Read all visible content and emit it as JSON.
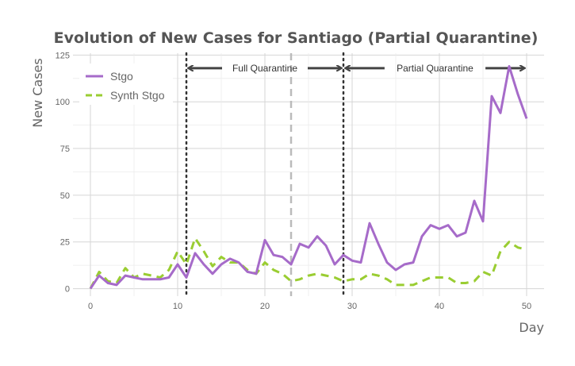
{
  "chart_data": {
    "type": "line",
    "title": "Evolution of New Cases for Santiago (Partial Quarantine)",
    "xlabel": "Day",
    "ylabel": "New Cases",
    "xlim": [
      -2,
      52
    ],
    "ylim": [
      -4,
      126
    ],
    "x_ticks": [
      0,
      10,
      20,
      30,
      40,
      50
    ],
    "y_ticks": [
      0,
      25,
      50,
      75,
      100,
      125
    ],
    "grid": true,
    "legend_position": "top-left",
    "series": [
      {
        "name": "Stgo",
        "color": "#a66bc9",
        "style": "solid",
        "x": [
          0,
          1,
          2,
          3,
          4,
          5,
          6,
          7,
          8,
          9,
          10,
          11,
          12,
          13,
          14,
          15,
          16,
          17,
          18,
          19,
          20,
          21,
          22,
          23,
          24,
          25,
          26,
          27,
          28,
          29,
          30,
          31,
          32,
          33,
          34,
          35,
          36,
          37,
          38,
          39,
          40,
          41,
          42,
          43,
          44,
          45,
          46,
          47,
          48,
          49,
          50
        ],
        "values": [
          0,
          7,
          3,
          2,
          7,
          6,
          5,
          5,
          5,
          6,
          13,
          6,
          19,
          13,
          8,
          13,
          16,
          14,
          9,
          8,
          26,
          18,
          17,
          13,
          24,
          22,
          28,
          23,
          13,
          18,
          15,
          14,
          35,
          24,
          14,
          10,
          13,
          14,
          28,
          34,
          32,
          34,
          28,
          30,
          47,
          36,
          103,
          94,
          119,
          104,
          91
        ]
      },
      {
        "name": "Synth Stgo",
        "color": "#9acd32",
        "style": "dashed",
        "x": [
          0,
          1,
          2,
          3,
          4,
          5,
          6,
          7,
          8,
          9,
          10,
          11,
          12,
          13,
          14,
          15,
          16,
          17,
          18,
          19,
          20,
          21,
          22,
          23,
          24,
          25,
          26,
          27,
          28,
          29,
          30,
          31,
          32,
          33,
          34,
          35,
          36,
          37,
          38,
          39,
          40,
          41,
          42,
          43,
          44,
          45,
          46,
          47,
          48,
          49,
          50
        ],
        "values": [
          0,
          9,
          4,
          3,
          11,
          6,
          8,
          7,
          6,
          10,
          20,
          13,
          27,
          20,
          12,
          17,
          14,
          14,
          10,
          8,
          14,
          10,
          8,
          4,
          5,
          7,
          8,
          7,
          6,
          4,
          5,
          5,
          8,
          7,
          5,
          2,
          2,
          2,
          4,
          6,
          6,
          6,
          3,
          3,
          4,
          9,
          7,
          20,
          25,
          22,
          21
        ]
      }
    ],
    "reference_lines": [
      {
        "x": 11,
        "style": "dotted",
        "color": "#333333"
      },
      {
        "x": 23,
        "style": "dashed",
        "color": "#bbbbbb"
      },
      {
        "x": 29,
        "style": "dotted",
        "color": "#333333"
      }
    ],
    "annotations": [
      {
        "label": "Full Quarantine",
        "x_start": 11,
        "x_end": 29,
        "y": 118
      },
      {
        "label": "Partial Quarantine",
        "x_start": 29,
        "x_end": 50,
        "y": 118
      }
    ]
  }
}
